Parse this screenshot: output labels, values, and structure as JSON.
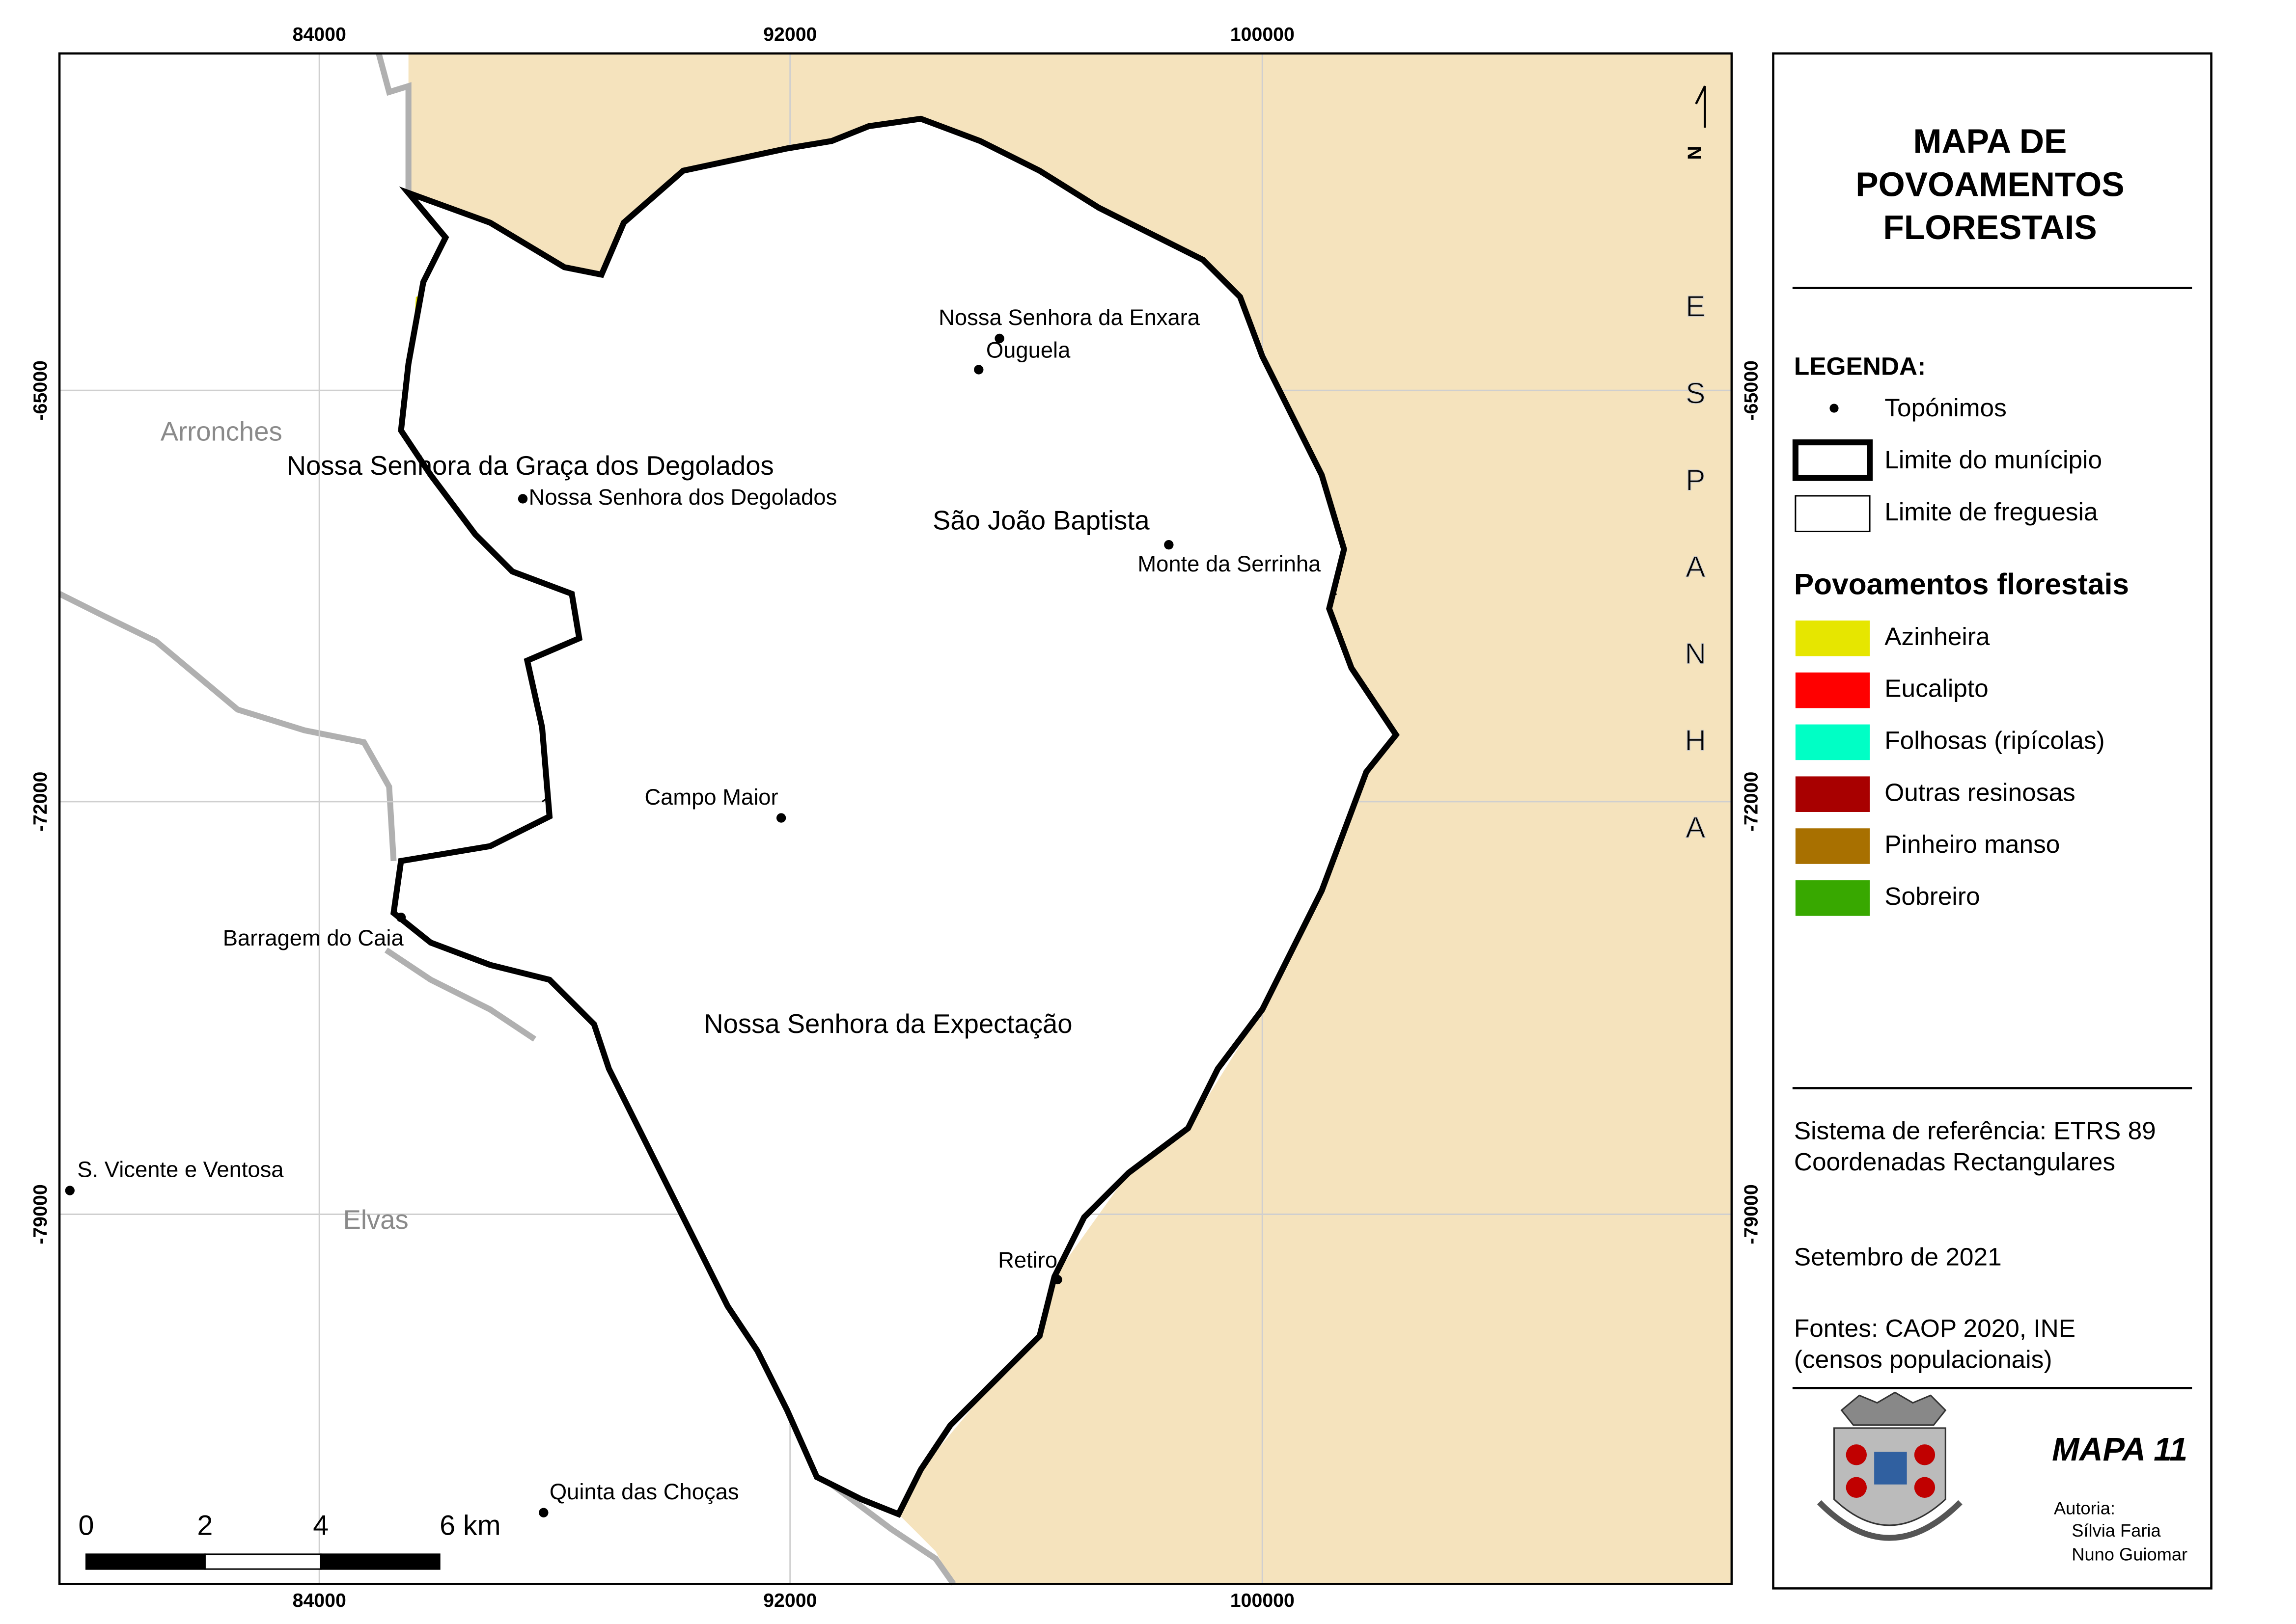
{
  "map": {
    "x_ticks": [
      "84000",
      "92000",
      "100000"
    ],
    "y_ticks": [
      "-65000",
      "-72000",
      "-79000"
    ],
    "country_label": "ESPANHA",
    "north_label": "N",
    "place_labels": [
      "Arronches",
      "Nossa Senhora da Graça dos Degolados",
      "Nossa Senhora dos Degolados",
      "Nossa Senhora da Enxara",
      "Ouguela",
      "São João Baptista",
      "Monte da Serrinha",
      "Campo Maior",
      "Barragem do Caia",
      "Nossa Senhora da Expectação",
      "S. Vicente e Ventosa",
      "Elvas",
      "Retiro",
      "Quinta das Choças"
    ],
    "scale_labels": [
      "0",
      "2",
      "4",
      "6 km"
    ]
  },
  "panel": {
    "title": [
      "MAPA DE",
      "POVOAMENTOS",
      "FLORESTAIS"
    ],
    "legend_title": "LEGENDA:",
    "legend_items": [
      "Topónimos",
      "Limite do munícipio",
      "Limite de freguesia"
    ],
    "forest_title": "Povoamentos florestais",
    "forest_items": [
      {
        "label": "Azinheira",
        "color": "#e6e600"
      },
      {
        "label": "Eucalipto",
        "color": "#ff0000"
      },
      {
        "label": "Folhosas (ripícolas)",
        "color": "#00ffc5"
      },
      {
        "label": "Outras resinosas",
        "color": "#a80000"
      },
      {
        "label": "Pinheiro manso",
        "color": "#a87000"
      },
      {
        "label": "Sobreiro",
        "color": "#38a800"
      }
    ],
    "reference": [
      "Sistema de referência: ETRS 89",
      "Coordenadas Rectangulares"
    ],
    "date": "Setembro de 2021",
    "sources": [
      "Fontes: CAOP 2020, INE",
      "(censos populacionais)"
    ],
    "map_number": "MAPA 11",
    "author_title": "Autoria:",
    "authors": [
      "Sílvia Faria",
      "Nuno Guiomar"
    ]
  }
}
